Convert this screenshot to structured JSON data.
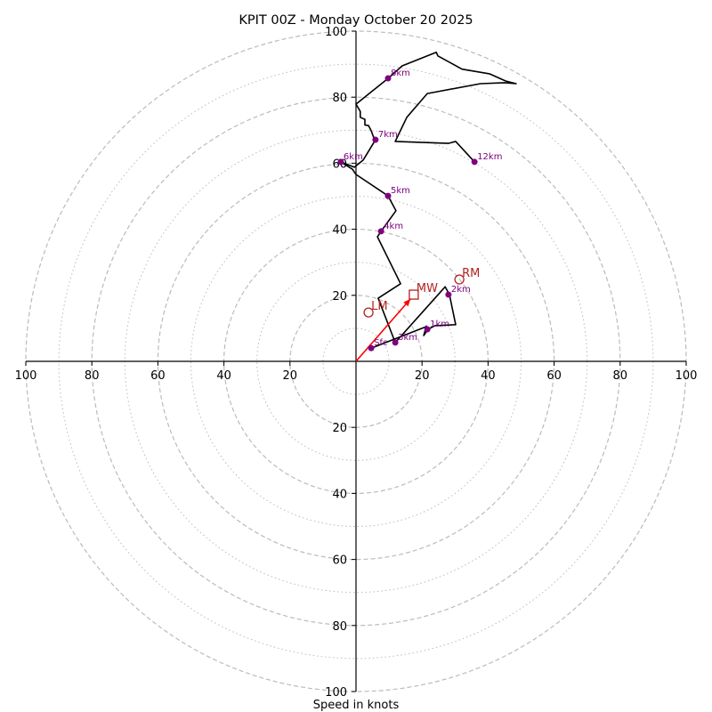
{
  "chart_data": {
    "type": "line",
    "subtype": "hodograph",
    "title": "KPIT 00Z - Monday October 20 2025",
    "xlabel": "Speed in knots",
    "ylabel": "",
    "xlim": [
      -100,
      100
    ],
    "ylim": [
      -100,
      100
    ],
    "x_ticks": [
      100,
      80,
      60,
      40,
      20,
      20,
      40,
      60,
      80,
      100
    ],
    "x_tick_values": [
      -100,
      -80,
      -60,
      -40,
      -20,
      20,
      40,
      60,
      80,
      100
    ],
    "y_ticks": [
      100,
      80,
      60,
      40,
      20,
      20,
      40,
      60,
      80,
      100
    ],
    "y_tick_values": [
      100,
      80,
      60,
      40,
      20,
      -20,
      -40,
      -60,
      -80,
      -100
    ],
    "rings_dashed": [
      20,
      40,
      60,
      80,
      100
    ],
    "rings_dotted": [
      10,
      30,
      50,
      70,
      90
    ],
    "grid": true,
    "colors": {
      "trace": "#000000",
      "height_marker": "#800080",
      "storm_motion": "#b22222",
      "mean_wind_vector": "#ff0000",
      "ring": "#bbbbbb"
    },
    "trace": {
      "u": [
        4.6,
        21.3,
        21.3,
        20.5,
        21.8,
        23.9,
        30.2,
        28.3,
        27.0,
        11.9,
        6.7,
        13.5,
        6.5,
        7.6,
        12.1,
        9.7,
        0.0,
        -1.1,
        -4.6,
        -0.5,
        2.2,
        5.9,
        5.4,
        4.6,
        3.8,
        2.7,
        2.7,
        1.3,
        1.3,
        0.0,
        9.7,
        14.0,
        24.3,
        24.8,
        32.1,
        40.4,
        45.3,
        48.5,
        45.0,
        37.7,
        21.6,
        15.4,
        11.9,
        28.0,
        30.2,
        35.9
      ],
      "v": [
        4.0,
        10.5,
        10.7,
        7.8,
        9.7,
        10.8,
        11.1,
        20.2,
        22.6,
        5.7,
        19.1,
        23.5,
        37.7,
        39.4,
        45.6,
        50.1,
        56.6,
        58.2,
        60.4,
        58.8,
        61.0,
        67.1,
        67.7,
        69.8,
        71.4,
        71.6,
        73.3,
        73.9,
        75.7,
        77.9,
        85.7,
        89.5,
        93.6,
        92.5,
        88.5,
        87.1,
        84.9,
        84.1,
        84.4,
        84.1,
        81.1,
        73.9,
        66.6,
        66.0,
        66.6,
        60.4
      ]
    },
    "height_markers": [
      {
        "label": "Sfc",
        "u": 4.6,
        "v": 4.0
      },
      {
        "label": "1km",
        "u": 21.6,
        "v": 9.7
      },
      {
        "label": "2km",
        "u": 28.0,
        "v": 20.2
      },
      {
        "label": "3km",
        "u": 11.9,
        "v": 5.7
      },
      {
        "label": "4km",
        "u": 7.6,
        "v": 39.4
      },
      {
        "label": "5km",
        "u": 9.7,
        "v": 50.1
      },
      {
        "label": "6km",
        "u": -4.6,
        "v": 60.4
      },
      {
        "label": "7km",
        "u": 5.9,
        "v": 67.1
      },
      {
        "label": "8km",
        "u": 9.7,
        "v": 85.7
      },
      {
        "label": "12km",
        "u": 35.9,
        "v": 60.4
      }
    ],
    "storm_motions": [
      {
        "label": "RM",
        "marker": "circle",
        "u": 31.3,
        "v": 24.8
      },
      {
        "label": "LM",
        "marker": "circle",
        "u": 3.8,
        "v": 14.8
      },
      {
        "label": "MW",
        "marker": "square",
        "u": 17.5,
        "v": 20.2
      }
    ],
    "mean_wind_vector": {
      "u": 16.5,
      "v": 18.9
    }
  }
}
